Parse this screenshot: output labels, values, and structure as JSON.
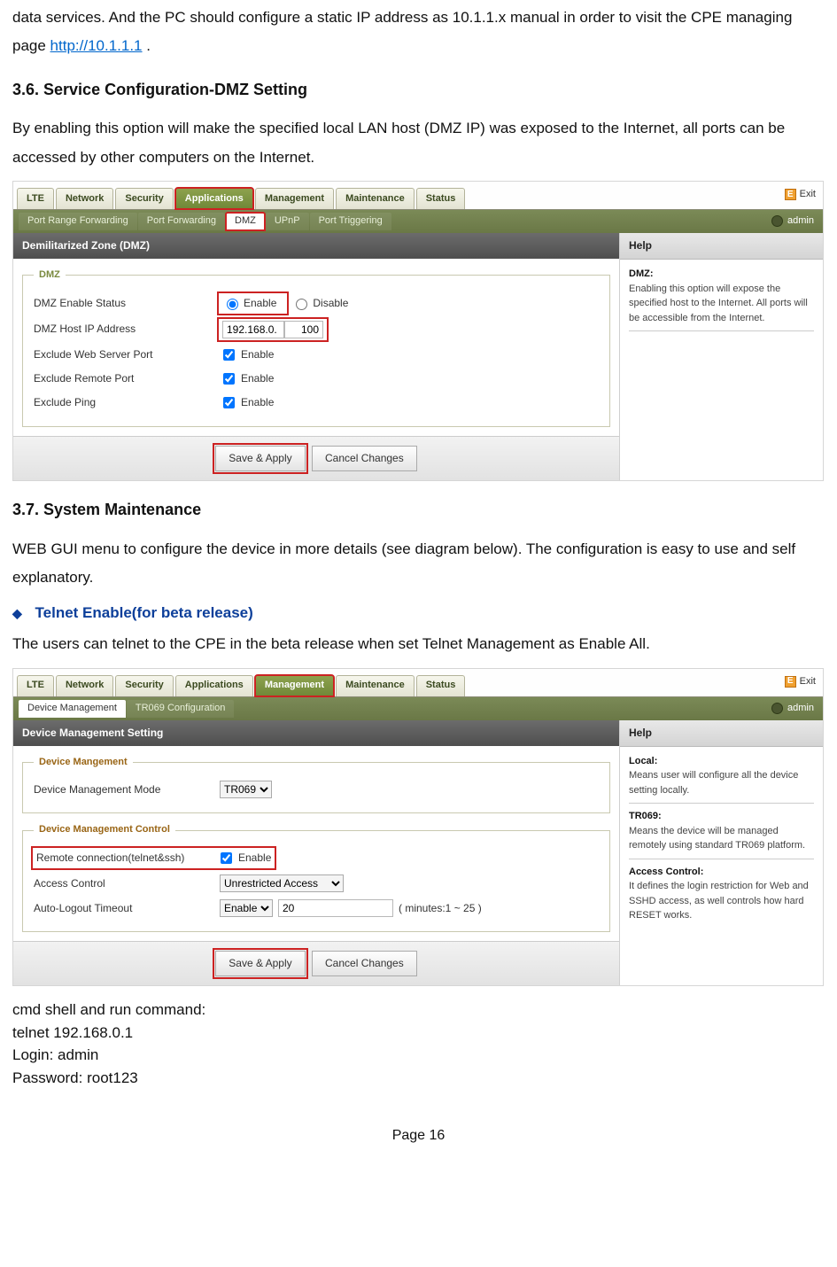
{
  "intro": {
    "line1_a": "data services.  And the PC should configure a static IP address as 10.1.1.x manual in order to ",
    "line1_b": "visit the CPE managing page  ",
    "link_text": "http://10.1.1.1",
    "line1_c": " ."
  },
  "sec36": {
    "heading": "3.6.    Service Configuration-DMZ Setting",
    "para": "By enabling this option will make the specified local LAN host (DMZ IP) was exposed to the Internet, all ports can be accessed by other computers on the Internet."
  },
  "ui1": {
    "main_tabs": [
      "LTE",
      "Network",
      "Security",
      "Applications",
      "Management",
      "Maintenance",
      "Status"
    ],
    "active_main_idx": 3,
    "highlight_main_idx": 3,
    "sub_tabs": [
      "Port Range Forwarding",
      "Port Forwarding",
      "DMZ",
      "UPnP",
      "Port Triggering"
    ],
    "active_sub_idx": 2,
    "highlight_sub_idx": 2,
    "exit": "Exit",
    "admin": "admin",
    "panel_title": "Demilitarized Zone (DMZ)",
    "help_title": "Help",
    "help_h1": "DMZ:",
    "help_p1": "Enabling this option will expose the specified host to the Internet. All ports will be accessible from the Internet.",
    "fieldset": "DMZ",
    "row_status": "DMZ Enable Status",
    "opt_enable": "Enable",
    "opt_disable": "Disable",
    "row_host": "DMZ Host IP Address",
    "ip_prefix": "192.168.0.",
    "ip_last": "100",
    "row_excl_web": "Exclude Web Server Port",
    "row_excl_remote": "Exclude Remote Port",
    "row_excl_ping": "Exclude Ping",
    "lbl_enable": "Enable",
    "btn_save": "Save & Apply",
    "btn_cancel": "Cancel Changes"
  },
  "sec37": {
    "heading": "3.7.    System Maintenance",
    "para": "WEB GUI menu to configure the device in more details (see diagram below). The configuration is easy to use and self explanatory."
  },
  "telnet": {
    "bullet": "Telnet Enable(for beta release)",
    "para": "The users  can telnet to the CPE  in the beta release when set Telnet Management as Enable All."
  },
  "ui2": {
    "main_tabs": [
      "LTE",
      "Network",
      "Security",
      "Applications",
      "Management",
      "Maintenance",
      "Status"
    ],
    "active_main_idx": 4,
    "highlight_main_idx": 4,
    "sub_tabs": [
      "Device Management",
      "TR069 Configuration"
    ],
    "active_sub_idx": 0,
    "highlight_sub_idx": -1,
    "exit": "Exit",
    "admin": "admin",
    "panel_title": "Device Management Setting",
    "help_title": "Help",
    "help_h1": "Local:",
    "help_p1": "Means user will configure all the device setting locally.",
    "help_h2": "TR069:",
    "help_p2": "Means the device will be managed remotely using standard TR069 platform.",
    "help_h3": "Access Control:",
    "help_p3": "It defines the login restriction for Web and SSHD access, as well controls how hard RESET works.",
    "fs1": "Device Mangement",
    "row_mode": "Device Management Mode",
    "mode_val": "TR069",
    "fs2": "Device Management Control",
    "row_remote": "Remote connection(telnet&ssh)",
    "lbl_enable": "Enable",
    "row_access": "Access Control",
    "access_val": "Unrestricted Access",
    "row_timeout": "Auto-Logout Timeout",
    "timeout_en": "Enable",
    "timeout_val": "20",
    "timeout_hint": "( minutes:1 ~ 25 )",
    "btn_save": "Save & Apply",
    "btn_cancel": "Cancel Changes"
  },
  "trailer": {
    "l1": "cmd shell and run command:",
    "l2": "telnet 192.168.0.1",
    "l3": "Login: admin",
    "l4": "Password: root123"
  },
  "footer": "Page 16"
}
